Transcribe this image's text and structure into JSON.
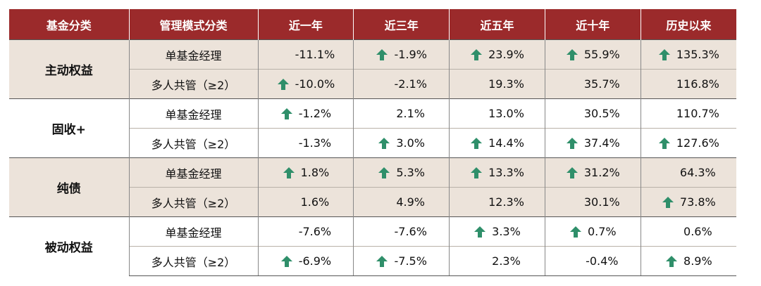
{
  "headers": [
    "基金分类",
    "管理模式分类",
    "近一年",
    "近三年",
    "近五年",
    "近十年",
    "历史以来"
  ],
  "groups": [
    {
      "name": "主动权益",
      "rows": [
        {
          "mode": "单基金经理",
          "values": [
            {
              "v": "-11.1%",
              "up": false
            },
            {
              "v": "-1.9%",
              "up": true
            },
            {
              "v": "23.9%",
              "up": true
            },
            {
              "v": "55.9%",
              "up": true
            },
            {
              "v": "135.3%",
              "up": true
            }
          ]
        },
        {
          "mode": "多人共管（≥2）",
          "values": [
            {
              "v": "-10.0%",
              "up": true
            },
            {
              "v": "-2.1%",
              "up": false
            },
            {
              "v": "19.3%",
              "up": false
            },
            {
              "v": "35.7%",
              "up": false
            },
            {
              "v": "116.8%",
              "up": false
            }
          ]
        }
      ]
    },
    {
      "name": "固收+",
      "rows": [
        {
          "mode": "单基金经理",
          "values": [
            {
              "v": "-1.2%",
              "up": true
            },
            {
              "v": "2.1%",
              "up": false
            },
            {
              "v": "13.0%",
              "up": false
            },
            {
              "v": "30.5%",
              "up": false
            },
            {
              "v": "110.7%",
              "up": false
            }
          ]
        },
        {
          "mode": "多人共管（≥2）",
          "values": [
            {
              "v": "-1.3%",
              "up": false
            },
            {
              "v": "3.0%",
              "up": true
            },
            {
              "v": "14.4%",
              "up": true
            },
            {
              "v": "37.4%",
              "up": true
            },
            {
              "v": "127.6%",
              "up": true
            }
          ]
        }
      ]
    },
    {
      "name": "纯债",
      "rows": [
        {
          "mode": "单基金经理",
          "values": [
            {
              "v": "1.8%",
              "up": true
            },
            {
              "v": "5.3%",
              "up": true
            },
            {
              "v": "13.3%",
              "up": true
            },
            {
              "v": "31.2%",
              "up": true
            },
            {
              "v": "64.3%",
              "up": false
            }
          ]
        },
        {
          "mode": "多人共管（≥2）",
          "values": [
            {
              "v": "1.6%",
              "up": false
            },
            {
              "v": "4.9%",
              "up": false
            },
            {
              "v": "12.3%",
              "up": false
            },
            {
              "v": "30.1%",
              "up": false
            },
            {
              "v": "73.8%",
              "up": true
            }
          ]
        }
      ]
    },
    {
      "name": "被动权益",
      "rows": [
        {
          "mode": "单基金经理",
          "values": [
            {
              "v": "-7.6%",
              "up": false
            },
            {
              "v": "-7.6%",
              "up": false
            },
            {
              "v": "3.3%",
              "up": true
            },
            {
              "v": "0.7%",
              "up": true
            },
            {
              "v": "0.6%",
              "up": false
            }
          ]
        },
        {
          "mode": "多人共管（≥2）",
          "values": [
            {
              "v": "-6.9%",
              "up": true
            },
            {
              "v": "-7.5%",
              "up": true
            },
            {
              "v": "2.3%",
              "up": false
            },
            {
              "v": "-0.4%",
              "up": false
            },
            {
              "v": "8.9%",
              "up": true
            }
          ]
        }
      ]
    }
  ],
  "colors": {
    "header_bg": "#9b2a2b",
    "shade_bg": "#ece3da",
    "arrow": "#2f8f6a"
  },
  "icons": {
    "up": "arrow-up-icon"
  }
}
